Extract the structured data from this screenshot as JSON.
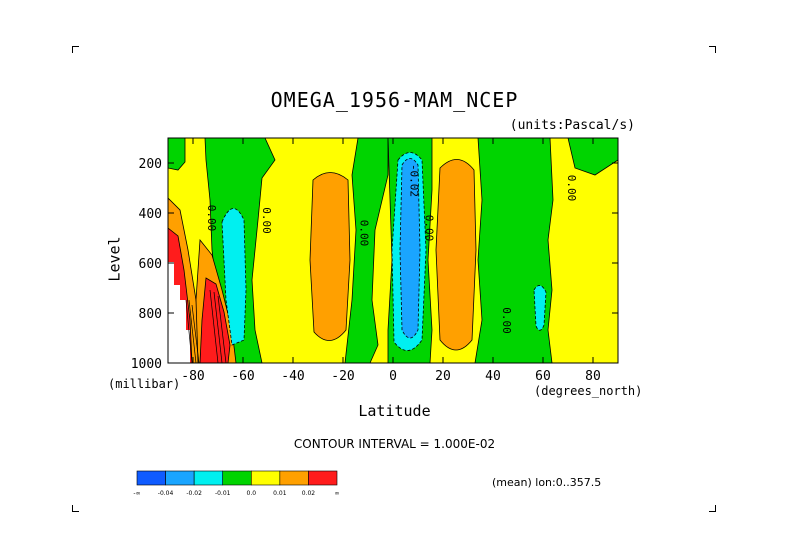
{
  "chart_data": {
    "type": "heatmap",
    "title": "OMEGA_1956-MAM_NCEP",
    "units_label": "(units:Pascal/s)",
    "ylabel": "Level",
    "yunit": "(millibar)",
    "xlabel": "Latitude",
    "xunit": "(degrees_north)",
    "xlim": [
      -90,
      90
    ],
    "ylim": [
      1000,
      100
    ],
    "xticks": [
      -80,
      -60,
      -40,
      -20,
      0,
      20,
      40,
      60,
      80
    ],
    "xtick_labels": [
      "-80",
      "-60",
      "-40",
      "-20",
      "0",
      "20",
      "40",
      "60",
      "80"
    ],
    "yticks": [
      200,
      400,
      600,
      800,
      1000
    ],
    "ytick_labels": [
      "200",
      "400",
      "600",
      "800",
      "1000"
    ],
    "contour_labels": [
      {
        "text": "0.00",
        "lat": -74,
        "lev": 420
      },
      {
        "text": "0.00",
        "lat": -52,
        "lev": 430
      },
      {
        "text": "0.00",
        "lat": -13,
        "lev": 480
      },
      {
        "text": "-0.02",
        "lat": 7,
        "lev": 270
      },
      {
        "text": "0.00",
        "lat": 13,
        "lev": 460
      },
      {
        "text": "0.00",
        "lat": 44,
        "lev": 830
      },
      {
        "text": "0.00",
        "lat": 70,
        "lev": 300
      }
    ],
    "contour_interval": "CONTOUR INTERVAL = 1.000E-02",
    "colorbar": {
      "colors": [
        "#0f5bff",
        "#1aa5ff",
        "#00f0f0",
        "#00d400",
        "#ffff00",
        "#ffa000",
        "#ff1c1c"
      ],
      "labels": [
        "-∞",
        "-0.04",
        "-0.02",
        "-0.01",
        "0.0",
        "0.01",
        "0.02",
        "∞"
      ]
    },
    "regions": [
      {
        "lon_range": "-90..-80",
        "level_range": "1000-400",
        "value_band": "0.02+",
        "color": "red"
      },
      {
        "lon_range": "-72..-58",
        "level_range": "900-400",
        "value_band": "-0.02..-0.01",
        "color": "cyan"
      },
      {
        "lon_range": "-30..-20",
        "level_range": "850-250",
        "value_band": "0.01..0.02",
        "color": "orange"
      },
      {
        "lon_range": "2..12",
        "level_range": "950-180",
        "value_band": "-0.04..-0.02",
        "color": "blue"
      },
      {
        "lon_range": "20..30",
        "level_range": "950-200",
        "value_band": "0.01..0.02",
        "color": "orange"
      }
    ],
    "mean_note": "(mean) lon:0..357.5"
  }
}
